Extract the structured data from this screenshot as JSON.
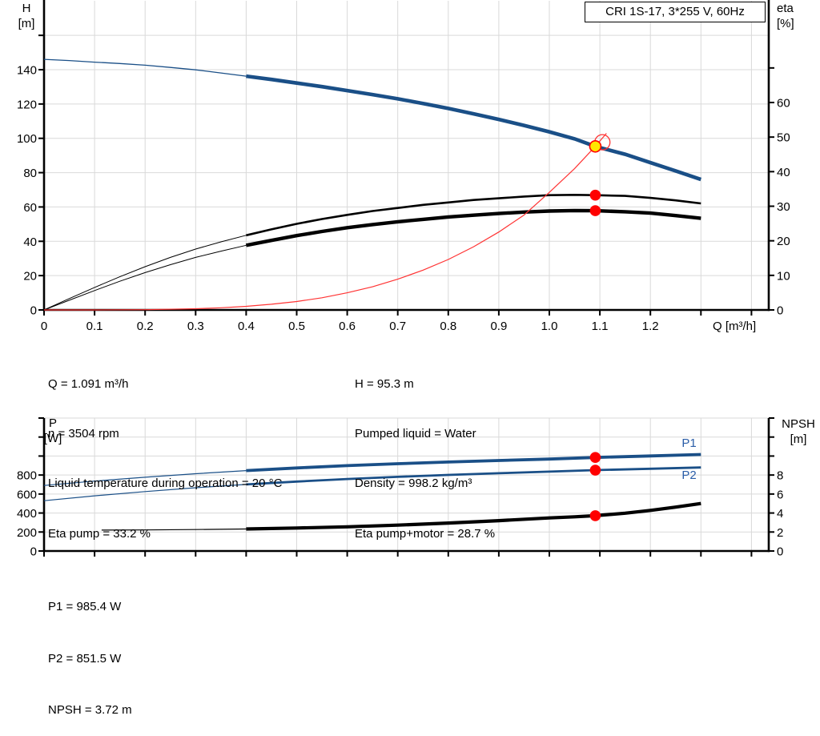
{
  "title_box": "CRI 1S-17, 3*255 V, 60Hz",
  "colors": {
    "curve_blue": "#1a4f87",
    "label_blue": "#2a5da8",
    "curve_black": "#000000",
    "curve_red": "#ff3333",
    "dot_red": "#ff0000",
    "duty_yellow": "#ffe600",
    "grid": "#d9d9d9",
    "axis": "#000000"
  },
  "axis_units": {
    "top_left": [
      "H",
      "[m]"
    ],
    "top_right": [
      "eta",
      "[%]"
    ],
    "bottom_left": [
      "P",
      "[W]"
    ],
    "bottom_right": [
      "NPSH",
      "[m]"
    ]
  },
  "info_top": {
    "left": [
      "Q = 1.091 m³/h",
      "n = 3504 rpm",
      "Liquid temperature during operation = 20 °C",
      "Eta pump = 33.2 %"
    ],
    "right": [
      "H = 95.3 m",
      "Pumped liquid = Water",
      "Density = 998.2 kg/m³",
      "Eta pump+motor = 28.7 %"
    ]
  },
  "info_bottom": [
    "P1 = 985.4 W",
    "P2 = 851.5 W",
    "NPSH = 3.72 m"
  ],
  "duty_point": {
    "Q_m3h": 1.091,
    "H_m": 95.3,
    "n_rpm": 3504,
    "eta_pump_pct": 33.2,
    "eta_pump_motor_pct": 28.7,
    "P1_W": 985.4,
    "P2_W": 851.5,
    "NPSH_m": 3.72,
    "liquid": "Water",
    "temperature_C": 20,
    "density_kg_m3": 998.2
  },
  "chart_data": [
    {
      "type": "line",
      "title": "CRI 1S-17, 3*255 V, 60Hz",
      "xlabel": "Q [m³/h]",
      "ylabel_left": "H [m]",
      "ylabel_right": "eta [%]",
      "xlim": [
        0,
        1.43
      ],
      "ylim_left": [
        0,
        180
      ],
      "ylim_right": [
        0,
        89
      ],
      "grid": true,
      "x_axis": {
        "ticks": [
          0,
          0.1,
          0.2,
          0.3,
          0.4,
          0.5,
          0.6,
          0.7,
          0.8,
          0.9,
          1,
          1.1,
          1.2,
          1.3,
          1.4
        ],
        "tick_labels": [
          "0",
          "0.1",
          "0.2",
          "0.3",
          "0.4",
          "0.5",
          "0.6",
          "0.7",
          "0.8",
          "0.9",
          "1.0",
          "1.1",
          "1.2"
        ]
      },
      "left_axis": {
        "ticks": [
          0,
          20,
          40,
          60,
          80,
          100,
          120,
          140,
          160
        ],
        "tick_labels": [
          "0",
          "20",
          "40",
          "60",
          "80",
          "100",
          "120",
          "140"
        ]
      },
      "right_axis": {
        "ticks": [
          0,
          10,
          20,
          30,
          40,
          50,
          60,
          70
        ],
        "tick_labels": [
          "0",
          "10",
          "20",
          "30",
          "40",
          "50",
          "60"
        ]
      },
      "series": [
        {
          "name": "H",
          "axis": "left",
          "color": "#1a4f87",
          "width": 4.6,
          "thin_width": 1.3,
          "split": 0.4,
          "points": [
            [
              0,
              146
            ],
            [
              0.05,
              145.3
            ],
            [
              0.1,
              144.4
            ],
            [
              0.15,
              143.6
            ],
            [
              0.2,
              142.6
            ],
            [
              0.25,
              141.3
            ],
            [
              0.3,
              139.9
            ],
            [
              0.35,
              138.1
            ],
            [
              0.4,
              136.2
            ],
            [
              0.45,
              134.3
            ],
            [
              0.5,
              132.2
            ],
            [
              0.55,
              130.1
            ],
            [
              0.6,
              127.8
            ],
            [
              0.65,
              125.5
            ],
            [
              0.7,
              123
            ],
            [
              0.75,
              120.3
            ],
            [
              0.8,
              117.4
            ],
            [
              0.85,
              114.3
            ],
            [
              0.9,
              111
            ],
            [
              0.95,
              107.5
            ],
            [
              1,
              103.8
            ],
            [
              1.05,
              99.7
            ],
            [
              1.091,
              95.3
            ],
            [
              1.15,
              90.7
            ],
            [
              1.2,
              85.8
            ],
            [
              1.25,
              81
            ],
            [
              1.3,
              76
            ]
          ]
        },
        {
          "name": "eta-pump",
          "axis": "right",
          "color": "#000000",
          "width": 2.6,
          "thin_width": 1,
          "split": 0.4,
          "points": [
            [
              0,
              0
            ],
            [
              0.05,
              3.3
            ],
            [
              0.1,
              6.5
            ],
            [
              0.15,
              9.6
            ],
            [
              0.2,
              12.5
            ],
            [
              0.25,
              15.2
            ],
            [
              0.3,
              17.6
            ],
            [
              0.35,
              19.7
            ],
            [
              0.4,
              21.6
            ],
            [
              0.45,
              23.3
            ],
            [
              0.5,
              24.9
            ],
            [
              0.55,
              26.3
            ],
            [
              0.6,
              27.5
            ],
            [
              0.65,
              28.6
            ],
            [
              0.7,
              29.5
            ],
            [
              0.75,
              30.4
            ],
            [
              0.8,
              31.1
            ],
            [
              0.85,
              31.8
            ],
            [
              0.9,
              32.3
            ],
            [
              0.95,
              32.8
            ],
            [
              1,
              33.2
            ],
            [
              1.05,
              33.3
            ],
            [
              1.091,
              33.2
            ],
            [
              1.15,
              33
            ],
            [
              1.2,
              32.4
            ],
            [
              1.25,
              31.7
            ],
            [
              1.3,
              30.8
            ]
          ]
        },
        {
          "name": "eta-pump-motor",
          "axis": "right",
          "color": "#000000",
          "width": 4.4,
          "thin_width": 1,
          "split": 0.4,
          "points": [
            [
              0,
              0
            ],
            [
              0.05,
              2.8
            ],
            [
              0.1,
              5.6
            ],
            [
              0.15,
              8.3
            ],
            [
              0.2,
              10.8
            ],
            [
              0.25,
              13.1
            ],
            [
              0.3,
              15.2
            ],
            [
              0.35,
              17
            ],
            [
              0.4,
              18.7
            ],
            [
              0.45,
              20.1
            ],
            [
              0.5,
              21.5
            ],
            [
              0.55,
              22.7
            ],
            [
              0.6,
              23.8
            ],
            [
              0.65,
              24.7
            ],
            [
              0.7,
              25.5
            ],
            [
              0.75,
              26.2
            ],
            [
              0.8,
              26.9
            ],
            [
              0.85,
              27.4
            ],
            [
              0.9,
              27.9
            ],
            [
              0.95,
              28.3
            ],
            [
              1,
              28.6
            ],
            [
              1.05,
              28.75
            ],
            [
              1.091,
              28.7
            ],
            [
              1.15,
              28.4
            ],
            [
              1.2,
              28
            ],
            [
              1.25,
              27.3
            ],
            [
              1.3,
              26.5
            ]
          ]
        },
        {
          "name": "system-curve",
          "axis": "left",
          "color": "#ff3333",
          "width": 1.2,
          "points": [
            [
              0,
              0
            ],
            [
              0.1,
              0.01
            ],
            [
              0.2,
              0.15
            ],
            [
              0.3,
              0.7
            ],
            [
              0.35,
              1.25
            ],
            [
              0.4,
              2.1
            ],
            [
              0.45,
              3.3
            ],
            [
              0.5,
              4.9
            ],
            [
              0.55,
              7.1
            ],
            [
              0.6,
              10
            ],
            [
              0.65,
              13.5
            ],
            [
              0.7,
              17.9
            ],
            [
              0.75,
              23.2
            ],
            [
              0.8,
              29.4
            ],
            [
              0.85,
              36.8
            ],
            [
              0.9,
              45.4
            ],
            [
              0.95,
              55.3
            ],
            [
              1,
              68.5
            ],
            [
              1.05,
              82.4
            ],
            [
              1.091,
              95.3
            ],
            [
              1.113,
              102.9
            ]
          ]
        }
      ],
      "markers": [
        {
          "name": "duty-ring",
          "axis": "left",
          "q": 1.105,
          "value": 97.7,
          "r": 9.5,
          "fill": "none",
          "stroke": "#ff3333",
          "sw": 1.3,
          "interactable": false
        },
        {
          "name": "duty-point",
          "axis": "left",
          "q": 1.091,
          "value": 95.3,
          "r": 7,
          "fill": "#ffe600",
          "stroke": "#ff0000",
          "sw": 1.6,
          "interactable": true
        },
        {
          "name": "eta-pump-point",
          "axis": "right",
          "q": 1.091,
          "value": 33.2,
          "r": 6.8,
          "fill": "#ff0000",
          "interactable": true
        },
        {
          "name": "eta-pump-motor-point",
          "axis": "right",
          "q": 1.091,
          "value": 28.7,
          "r": 6.8,
          "fill": "#ff0000",
          "interactable": true
        }
      ]
    },
    {
      "type": "line",
      "title": "",
      "xlabel": "",
      "ylabel_left": "P [W]",
      "ylabel_right": "NPSH [m]",
      "xlim": [
        0,
        1.43
      ],
      "ylim_left": [
        0,
        1400
      ],
      "ylim_right": [
        0,
        14
      ],
      "grid": true,
      "x_axis": {
        "ticks": [
          0,
          0.1,
          0.2,
          0.3,
          0.4,
          0.5,
          0.6,
          0.7,
          0.8,
          0.9,
          1,
          1.1,
          1.2,
          1.3,
          1.4
        ],
        "tick_labels": []
      },
      "left_axis": {
        "ticks": [
          0,
          200,
          400,
          600,
          800,
          1000,
          1200,
          1400
        ],
        "tick_labels": [
          "0",
          "200",
          "400",
          "600",
          "800"
        ]
      },
      "right_axis": {
        "ticks": [
          0,
          2,
          4,
          6,
          8,
          10,
          12,
          14
        ],
        "tick_labels": [
          "0",
          "2",
          "4",
          "6",
          "8"
        ]
      },
      "series": [
        {
          "name": "P1",
          "axis": "left",
          "color": "#1a4f87",
          "width": 3.8,
          "thin_width": 1.2,
          "split": 0.4,
          "points": [
            [
              0,
              690
            ],
            [
              0.1,
              736
            ],
            [
              0.2,
              777
            ],
            [
              0.3,
              814
            ],
            [
              0.4,
              847
            ],
            [
              0.5,
              875
            ],
            [
              0.6,
              899
            ],
            [
              0.7,
              919
            ],
            [
              0.8,
              937
            ],
            [
              0.9,
              953
            ],
            [
              1,
              968
            ],
            [
              1.091,
              985.4
            ],
            [
              1.2,
              1001
            ],
            [
              1.3,
              1016
            ]
          ]
        },
        {
          "name": "P2",
          "axis": "left",
          "color": "#1a4f87",
          "width": 2.8,
          "thin_width": 1.2,
          "split": 0.4,
          "points": [
            [
              0,
              530
            ],
            [
              0.1,
              581
            ],
            [
              0.2,
              626
            ],
            [
              0.3,
              666
            ],
            [
              0.4,
              701
            ],
            [
              0.5,
              731
            ],
            [
              0.6,
              758
            ],
            [
              0.7,
              781
            ],
            [
              0.8,
              801
            ],
            [
              0.9,
              819
            ],
            [
              1,
              836
            ],
            [
              1.091,
              851.5
            ],
            [
              1.2,
              866
            ],
            [
              1.3,
              880
            ]
          ]
        },
        {
          "name": "NPSH",
          "axis": "right",
          "color": "#000000",
          "width": 4.2,
          "thin_width": 1.2,
          "split": 0.4,
          "points": [
            [
              0.114,
              2.2
            ],
            [
              0.2,
              2.22
            ],
            [
              0.3,
              2.26
            ],
            [
              0.4,
              2.32
            ],
            [
              0.5,
              2.42
            ],
            [
              0.6,
              2.55
            ],
            [
              0.7,
              2.72
            ],
            [
              0.8,
              2.94
            ],
            [
              0.9,
              3.2
            ],
            [
              1,
              3.48
            ],
            [
              1.05,
              3.6
            ],
            [
              1.091,
              3.72
            ],
            [
              1.15,
              3.98
            ],
            [
              1.2,
              4.28
            ],
            [
              1.25,
              4.62
            ],
            [
              1.3,
              5
            ]
          ]
        }
      ],
      "markers": [
        {
          "name": "p1-point",
          "axis": "left",
          "q": 1.091,
          "value": 985.4,
          "r": 6.8,
          "fill": "#ff0000",
          "interactable": true
        },
        {
          "name": "p2-point",
          "axis": "left",
          "q": 1.091,
          "value": 851.5,
          "r": 6.8,
          "fill": "#ff0000",
          "interactable": true
        },
        {
          "name": "npsh-point",
          "axis": "right",
          "q": 1.091,
          "value": 3.72,
          "r": 6.8,
          "fill": "#ff0000",
          "interactable": true
        }
      ],
      "curve_labels": [
        {
          "text": "P1",
          "q": 1.262,
          "value": 1096,
          "axis": "left"
        },
        {
          "text": "P2",
          "q": 1.262,
          "value": 760,
          "axis": "left"
        }
      ]
    }
  ]
}
